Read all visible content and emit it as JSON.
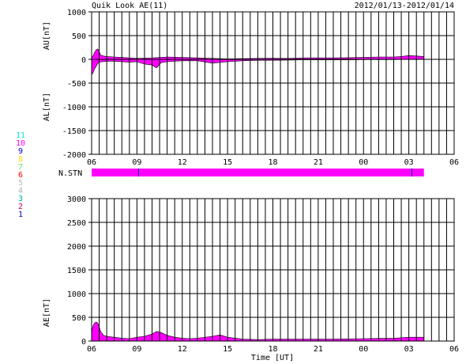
{
  "header": {
    "title": "Quik Look AE(11)",
    "date_range": "2012/01/13-2012/01/14"
  },
  "x_axis": {
    "tick_labels": [
      "06",
      "09",
      "12",
      "15",
      "18",
      "21",
      "00",
      "03",
      "06"
    ],
    "xlabel": "Time [UT]"
  },
  "stations": {
    "label": "N.STN",
    "legend": [
      {
        "label": "11",
        "color": "#00e5e5"
      },
      {
        "label": "10",
        "color": "#ff00ff"
      },
      {
        "label": "9",
        "color": "#0000cc"
      },
      {
        "label": "8",
        "color": "#ffd800"
      },
      {
        "label": "7",
        "color": "#66dd66"
      },
      {
        "label": "6",
        "color": "#ff0000"
      },
      {
        "label": "5",
        "color": "#bbbbbb"
      },
      {
        "label": "4",
        "color": "#b0b0b0"
      },
      {
        "label": "3",
        "color": "#00b0b0"
      },
      {
        "label": "2",
        "color": "#cc0066"
      },
      {
        "label": "1",
        "color": "#0000aa"
      }
    ],
    "bar_color": "#ff00ff",
    "marker_color": "#000080",
    "coverage_hours": [
      0,
      22
    ],
    "marker_hours": [
      3.1,
      21.2
    ],
    "value": 10
  },
  "chart_data": [
    {
      "type": "area",
      "ylabels": [
        "AU[nT]",
        "AL[nT]"
      ],
      "ylim": [
        -2000,
        1000
      ],
      "yticks": [
        -2000,
        -1500,
        -1000,
        -500,
        0,
        500,
        1000
      ],
      "x_hours_range": [
        0,
        24
      ],
      "grid": true,
      "fill_color": "#ff00ff",
      "series": [
        {
          "name": "AU",
          "x": [
            0,
            0.1,
            0.2,
            0.3,
            0.4,
            0.5,
            0.6,
            0.8,
            1.0,
            1.5,
            2.0,
            3.0,
            4.0,
            5.0,
            6.0,
            7.0,
            8.0,
            9.0,
            10.0,
            11.0,
            12.0,
            13.0,
            14.0,
            15.0,
            16.0,
            17.0,
            18.0,
            19.0,
            20.0,
            20.5,
            21.0,
            21.5,
            22.0
          ],
          "values": [
            30,
            80,
            150,
            200,
            220,
            160,
            90,
            70,
            60,
            50,
            40,
            20,
            30,
            50,
            40,
            30,
            20,
            10,
            15,
            20,
            25,
            20,
            30,
            30,
            30,
            35,
            40,
            50,
            50,
            60,
            80,
            70,
            60
          ]
        },
        {
          "name": "AL",
          "x": [
            0,
            0.1,
            0.2,
            0.3,
            0.4,
            0.5,
            0.7,
            1.0,
            1.5,
            2.0,
            2.5,
            3.0,
            3.5,
            4.0,
            4.3,
            4.6,
            5.0,
            6.0,
            7.0,
            8.0,
            9.0,
            10.0,
            11.0,
            12.0,
            13.0,
            14.0,
            15.0,
            16.0,
            17.0,
            18.0,
            19.0,
            20.0,
            21.0,
            22.0
          ],
          "values": [
            -330,
            -280,
            -200,
            -150,
            -90,
            -60,
            -50,
            -40,
            -40,
            -50,
            -60,
            -50,
            -100,
            -120,
            -180,
            -70,
            -50,
            -30,
            -30,
            -80,
            -50,
            -30,
            -20,
            -20,
            -15,
            -10,
            -10,
            -10,
            -10,
            -5,
            -5,
            -5,
            0,
            0
          ]
        }
      ]
    },
    {
      "type": "area",
      "ylabel": "AE[nT]",
      "ylim": [
        0,
        3000
      ],
      "yticks": [
        0,
        500,
        1000,
        1500,
        2000,
        2500,
        3000
      ],
      "x_hours_range": [
        0,
        24
      ],
      "grid": true,
      "fill_color": "#ff00ff",
      "series": [
        {
          "name": "AE",
          "x": [
            0,
            0.1,
            0.2,
            0.3,
            0.4,
            0.5,
            0.6,
            0.8,
            1.0,
            1.5,
            2.0,
            2.5,
            3.0,
            3.5,
            4.0,
            4.3,
            4.6,
            5.0,
            5.5,
            6.0,
            6.5,
            7.0,
            8.0,
            8.5,
            9.0,
            10.0,
            11.0,
            12.0,
            13.0,
            14.0,
            15.0,
            16.0,
            17.0,
            18.0,
            19.0,
            20.0,
            21.0,
            22.0
          ],
          "values": [
            200,
            330,
            380,
            400,
            380,
            300,
            200,
            120,
            100,
            80,
            60,
            50,
            80,
            100,
            150,
            200,
            180,
            120,
            80,
            60,
            50,
            60,
            100,
            130,
            80,
            40,
            30,
            40,
            40,
            40,
            40,
            40,
            45,
            50,
            55,
            60,
            80,
            80
          ]
        }
      ]
    }
  ]
}
